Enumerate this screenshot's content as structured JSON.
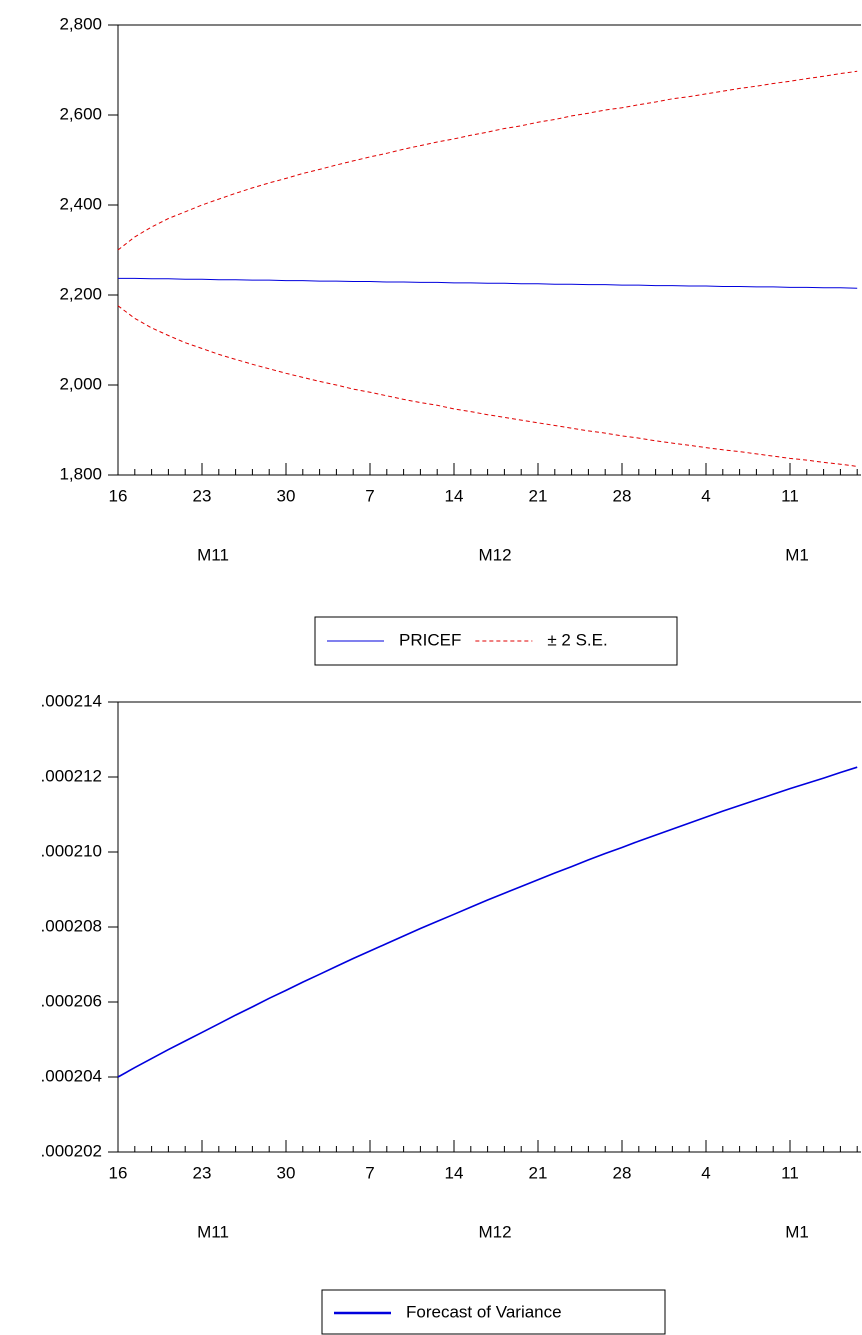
{
  "chart_data": [
    {
      "type": "line",
      "categories": [
        "16",
        null,
        null,
        null,
        null,
        "23",
        null,
        null,
        null,
        null,
        "30",
        null,
        null,
        null,
        null,
        "7",
        null,
        null,
        null,
        null,
        "14",
        null,
        null,
        null,
        null,
        "21",
        null,
        null,
        null,
        null,
        "28",
        null,
        null,
        null,
        null,
        "4",
        null,
        null,
        null,
        null,
        "11",
        null,
        null,
        null,
        null
      ],
      "month_labels": [
        "M11",
        "M12",
        "M1"
      ],
      "ylim": [
        1800,
        2800
      ],
      "yticks": [
        {
          "value": 1800,
          "label": "1,800"
        },
        {
          "value": 2000,
          "label": "2,000"
        },
        {
          "value": 2200,
          "label": "2,200"
        },
        {
          "value": 2400,
          "label": "2,400"
        },
        {
          "value": 2600,
          "label": "2,600"
        },
        {
          "value": 2800,
          "label": "2,800"
        }
      ],
      "series": [
        {
          "name": "PRICEF",
          "color": "#0000dd",
          "values": [
            2237,
            2237,
            2236,
            2236,
            2235,
            2235,
            2234,
            2234,
            2233,
            2233,
            2232,
            2232,
            2231,
            2231,
            2230,
            2230,
            2229,
            2229,
            2228,
            2228,
            2227,
            2227,
            2226,
            2226,
            2225,
            2225,
            2224,
            2224,
            2223,
            2223,
            2222,
            2222,
            2221,
            2221,
            2220,
            2220,
            2219,
            2219,
            2218,
            2218,
            2217,
            2217,
            2216,
            2216,
            2215
          ]
        },
        {
          "name": "± 2 S.E.",
          "color": "#e00000",
          "dashed": true,
          "upper": [
            2300,
            2329,
            2351,
            2370,
            2385,
            2400,
            2413,
            2426,
            2438,
            2449,
            2459,
            2470,
            2479,
            2489,
            2498,
            2507,
            2515,
            2524,
            2532,
            2540,
            2547,
            2555,
            2562,
            2570,
            2576,
            2584,
            2590,
            2598,
            2604,
            2611,
            2616,
            2623,
            2629,
            2636,
            2641,
            2647,
            2653,
            2659,
            2664,
            2670,
            2675,
            2681,
            2686,
            2692,
            2697
          ],
          "lower": [
            2176,
            2148,
            2127,
            2110,
            2094,
            2081,
            2068,
            2057,
            2046,
            2036,
            2026,
            2017,
            2008,
            2000,
            1991,
            1984,
            1976,
            1968,
            1961,
            1955,
            1947,
            1941,
            1934,
            1928,
            1922,
            1916,
            1910,
            1904,
            1898,
            1893,
            1887,
            1882,
            1876,
            1871,
            1866,
            1861,
            1856,
            1852,
            1847,
            1842,
            1837,
            1833,
            1828,
            1824,
            1819
          ]
        }
      ]
    },
    {
      "type": "line",
      "categories": [
        "16",
        null,
        null,
        null,
        null,
        "23",
        null,
        null,
        null,
        null,
        "30",
        null,
        null,
        null,
        null,
        "7",
        null,
        null,
        null,
        null,
        "14",
        null,
        null,
        null,
        null,
        "21",
        null,
        null,
        null,
        null,
        "28",
        null,
        null,
        null,
        null,
        "4",
        null,
        null,
        null,
        null,
        "11",
        null,
        null,
        null,
        null
      ],
      "month_labels": [
        "M11",
        "M12",
        "M1"
      ],
      "ylim": [
        0.000202,
        0.000214
      ],
      "yticks": [
        {
          "value": 0.000202,
          "label": ".000202"
        },
        {
          "value": 0.000204,
          "label": ".000204"
        },
        {
          "value": 0.000206,
          "label": ".000206"
        },
        {
          "value": 0.000208,
          "label": ".000208"
        },
        {
          "value": 0.00021,
          "label": ".000210"
        },
        {
          "value": 0.000212,
          "label": ".000212"
        },
        {
          "value": 0.000214,
          "label": ".000214"
        }
      ],
      "series": [
        {
          "name": "Forecast of Variance",
          "color": "#0000dd",
          "thick": true,
          "values": [
            0.000204,
            0.00020425,
            0.00020449,
            0.00020473,
            0.00020496,
            0.00020519,
            0.00020542,
            0.00020565,
            0.00020587,
            0.0002061,
            0.00020631,
            0.00020653,
            0.00020674,
            0.00020695,
            0.00020716,
            0.00020736,
            0.00020756,
            0.00020776,
            0.00020796,
            0.00020815,
            0.00020834,
            0.00020853,
            0.00020872,
            0.0002089,
            0.00020908,
            0.00020926,
            0.00020944,
            0.00020961,
            0.00020979,
            0.00020996,
            0.00021012,
            0.00021029,
            0.00021045,
            0.00021061,
            0.00021077,
            0.00021093,
            0.00021109,
            0.00021124,
            0.00021139,
            0.00021154,
            0.00021169,
            0.00021183,
            0.00021197,
            0.00021212,
            0.00021226
          ]
        }
      ]
    }
  ]
}
